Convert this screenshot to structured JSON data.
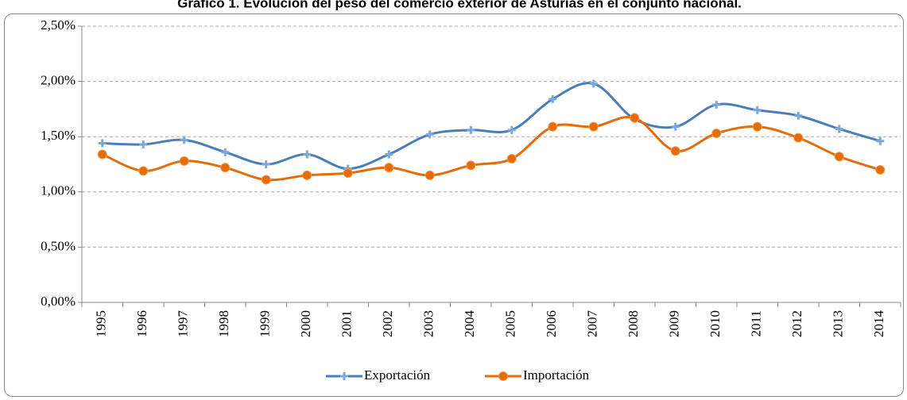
{
  "chart_data": {
    "type": "line",
    "title": "Gráfico 1. Evolución del peso del comercio exterior de Asturias en el conjunto nacional.",
    "categories": [
      "1995",
      "1996",
      "1997",
      "1998",
      "1999",
      "2000",
      "2001",
      "2002",
      "2003",
      "2004",
      "2005",
      "2006",
      "2007",
      "2008",
      "2009",
      "2010",
      "2011",
      "2012",
      "2013",
      "2014"
    ],
    "series": [
      {
        "name": "Exportación",
        "color": "#4a7ebb",
        "values": [
          1.44,
          1.43,
          1.47,
          1.36,
          1.25,
          1.34,
          1.21,
          1.34,
          1.52,
          1.56,
          1.56,
          1.84,
          1.98,
          1.66,
          1.59,
          1.79,
          1.74,
          1.69,
          1.57,
          1.46
        ]
      },
      {
        "name": "Importación",
        "color": "#e46c0a",
        "values": [
          1.34,
          1.19,
          1.28,
          1.22,
          1.11,
          1.15,
          1.17,
          1.22,
          1.15,
          1.24,
          1.3,
          1.59,
          1.59,
          1.67,
          1.37,
          1.53,
          1.59,
          1.49,
          1.32,
          1.2
        ]
      }
    ],
    "ylim": [
      0,
      2.5
    ],
    "yticks": [
      {
        "value": 0,
        "label": "0,00%"
      },
      {
        "value": 0.5,
        "label": "0,50%"
      },
      {
        "value": 1,
        "label": "1,00%"
      },
      {
        "value": 1.5,
        "label": "1,50%"
      },
      {
        "value": 2,
        "label": "2,00%"
      },
      {
        "value": 2.5,
        "label": "2,50%"
      }
    ],
    "grid": true,
    "legend": "bottom"
  }
}
